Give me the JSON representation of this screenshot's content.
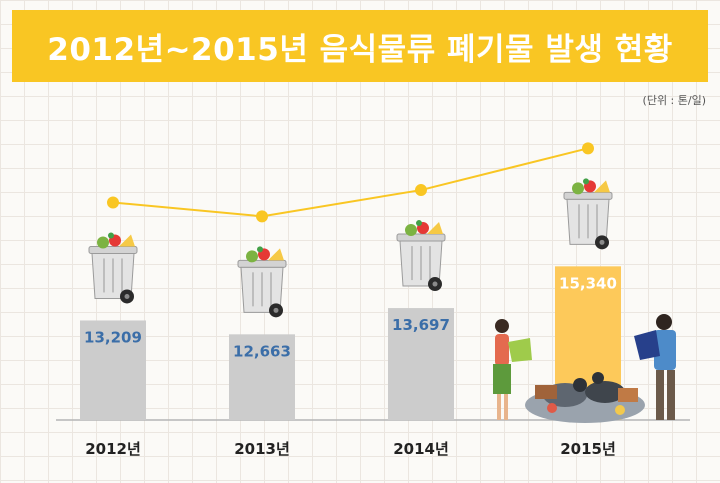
{
  "title": "2012년~2015년 음식물류 폐기물 발생 현황",
  "unit_note": "(단위 : 톤/일)",
  "colors": {
    "title_bg": "#f9c623",
    "bar_default": "#cccccc",
    "bar_highlight": "#fdc95a",
    "label_default": "#3b6ea8",
    "label_highlight": "#ffffff",
    "trend_line": "#f9c623"
  },
  "chart_data": {
    "type": "bar",
    "title": "2012년~2015년 음식물류 폐기물 발생 현황",
    "ylabel": "(단위 : 톤/일)",
    "categories": [
      "2012년",
      "2013년",
      "2014년",
      "2015년"
    ],
    "values": [
      13209,
      12663,
      13697,
      15340
    ],
    "value_labels": [
      "13,209",
      "12,663",
      "13,697",
      "15,340"
    ],
    "highlight_index": 3,
    "trend_line": true,
    "icons": [
      "trash-bin-with-food-icon",
      "trash-bin-with-food-icon",
      "trash-bin-with-food-icon",
      "trash-bin-with-food-icon"
    ],
    "grid": true
  }
}
